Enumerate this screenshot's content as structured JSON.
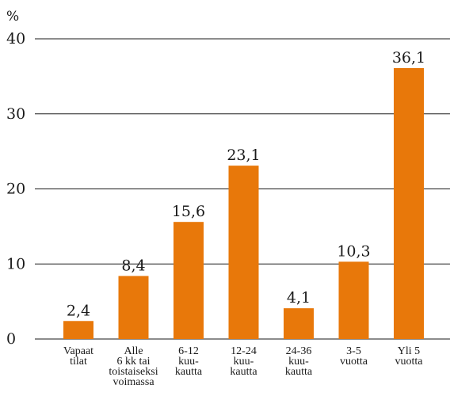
{
  "chart_data": {
    "type": "bar",
    "ylabel": "%",
    "ylim": [
      0,
      40
    ],
    "yticks": [
      "0",
      "10",
      "20",
      "30",
      "40"
    ],
    "grid": true,
    "bar_color": "#e8780a",
    "categories": [
      [
        "Vapaat",
        "tilat"
      ],
      [
        "Alle",
        "6 kk tai",
        "toistaiseksi",
        "voimassa"
      ],
      [
        "6-12",
        "kuu-",
        "kautta"
      ],
      [
        "12-24",
        "kuu-",
        "kautta"
      ],
      [
        "24-36",
        "kuu-",
        "kautta"
      ],
      [
        "3-5",
        "vuotta"
      ],
      [
        "Yli 5",
        "vuotta"
      ]
    ],
    "values": [
      2.4,
      8.4,
      15.6,
      23.1,
      4.1,
      10.3,
      36.1
    ],
    "value_labels": [
      "2,4",
      "8,4",
      "15,6",
      "23,1",
      "4,1",
      "10,3",
      "36,1"
    ]
  }
}
